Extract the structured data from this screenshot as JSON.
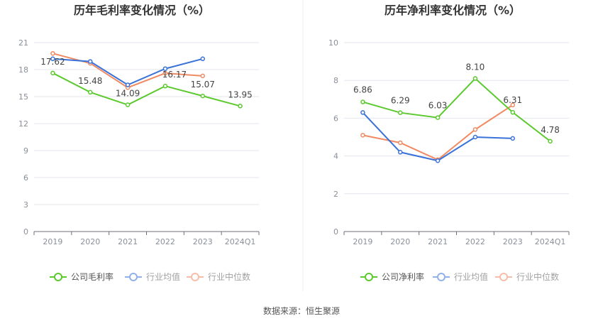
{
  "source_label": "数据来源：恒生聚源",
  "colors": {
    "company": "#5cc92f",
    "industry_avg": "#3a72d8",
    "industry_median": "#f08a62",
    "grid": "#e3e6ee",
    "axis_text": "#8a8f99",
    "title": "#333333",
    "data_label": "#444444",
    "divider": "#eeeeee"
  },
  "chart_data": [
    {
      "type": "line",
      "title": "历年毛利率变化情况（%）",
      "categories": [
        "2019",
        "2020",
        "2021",
        "2022",
        "2023",
        "2024Q1"
      ],
      "ylim": [
        0,
        21
      ],
      "yticks": [
        "0",
        "3",
        "6",
        "9",
        "12",
        "15",
        "18",
        "21"
      ],
      "grid": true,
      "legend_position": "bottom",
      "series": [
        {
          "name": "公司毛利率",
          "color_key": "company",
          "values": [
            17.62,
            15.48,
            14.09,
            16.17,
            15.07,
            13.95
          ],
          "labels": [
            "17.62",
            "15.48",
            "14.09",
            "16.17",
            "15.07",
            "13.95"
          ]
        },
        {
          "name": "行业均值",
          "color_key": "industry_avg",
          "values": [
            19.2,
            18.9,
            16.3,
            18.1,
            19.2,
            null
          ]
        },
        {
          "name": "行业中位数",
          "color_key": "industry_median",
          "values": [
            19.8,
            18.7,
            16.0,
            17.6,
            17.3,
            null
          ]
        }
      ]
    },
    {
      "type": "line",
      "title": "历年净利率变化情况（%）",
      "categories": [
        "2019",
        "2020",
        "2021",
        "2022",
        "2023",
        "2024Q1"
      ],
      "ylim": [
        0,
        10
      ],
      "yticks": [
        "0",
        "2",
        "4",
        "6",
        "8",
        "10"
      ],
      "grid": true,
      "legend_position": "bottom",
      "series": [
        {
          "name": "公司净利率",
          "color_key": "company",
          "values": [
            6.86,
            6.29,
            6.03,
            8.1,
            6.31,
            4.78
          ],
          "labels": [
            "6.86",
            "6.29",
            "6.03",
            "8.10",
            "6.31",
            "4.78"
          ]
        },
        {
          "name": "行业均值",
          "color_key": "industry_avg",
          "values": [
            6.3,
            4.2,
            3.75,
            5.0,
            4.93,
            null
          ]
        },
        {
          "name": "行业中位数",
          "color_key": "industry_median",
          "values": [
            5.1,
            4.7,
            3.8,
            5.4,
            6.7,
            null
          ]
        }
      ]
    }
  ]
}
